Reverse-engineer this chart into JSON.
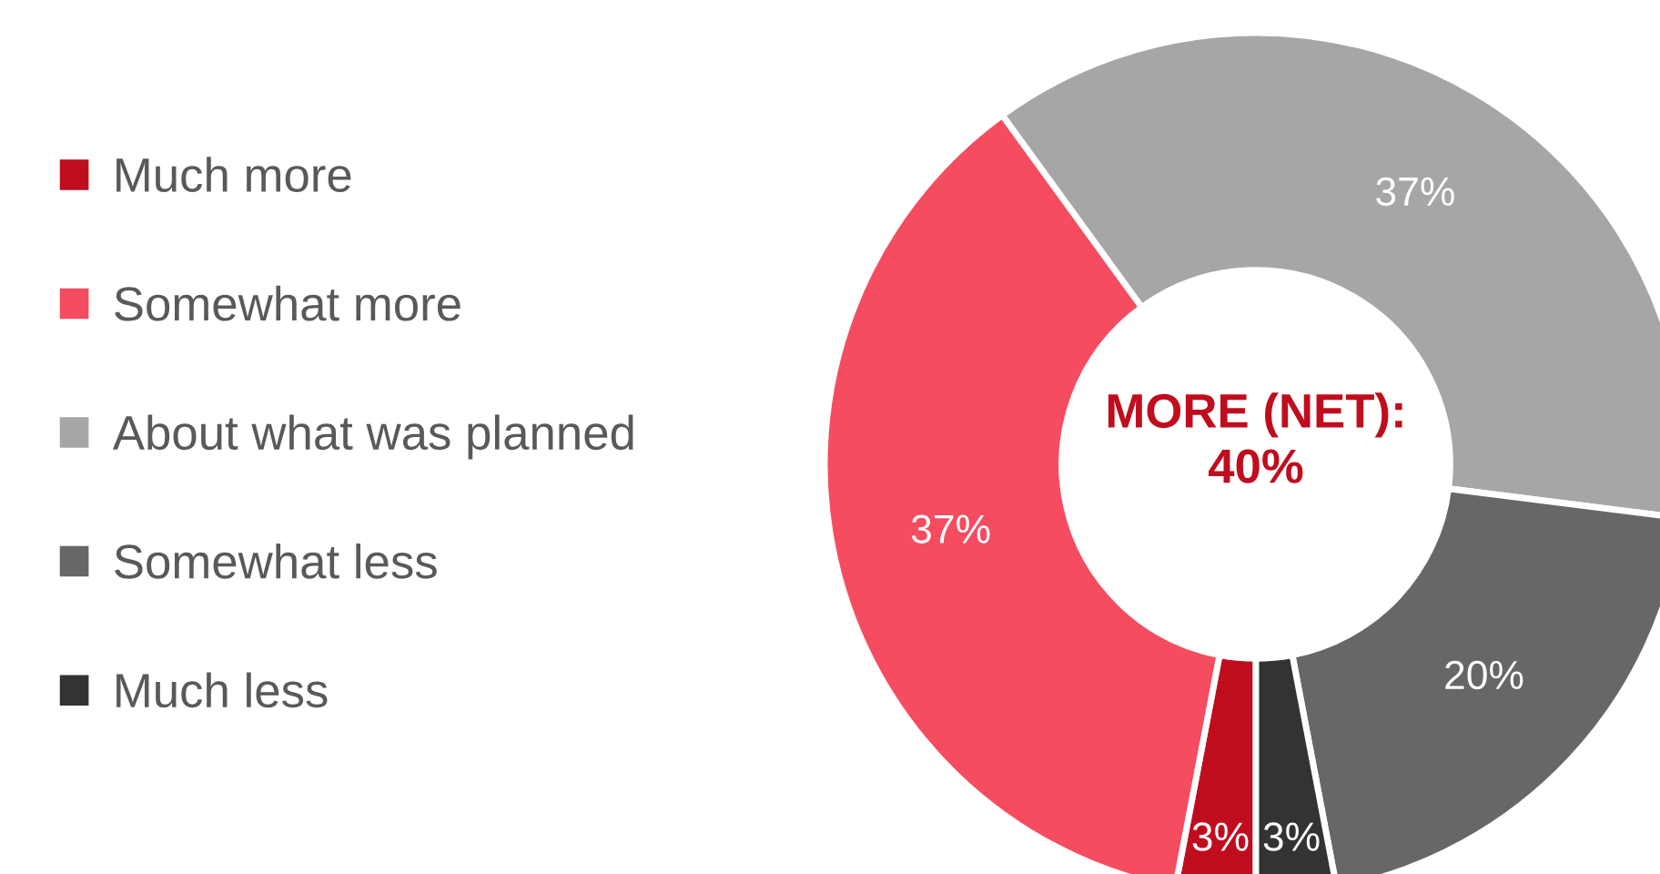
{
  "chart_data": {
    "type": "donut",
    "categories": [
      "Much more",
      "Somewhat more",
      "About what was planned",
      "Somewhat less",
      "Much less"
    ],
    "values": [
      3,
      37,
      37,
      20,
      3
    ],
    "colors": [
      "#c00d1e",
      "#f54c60",
      "#a6a6a6",
      "#676767",
      "#333333"
    ],
    "value_labels": [
      "3%",
      "37%",
      "37%",
      "20%",
      "3%"
    ],
    "legend": "left",
    "annotations": [
      "MORE (NET):\n40%"
    ]
  }
}
